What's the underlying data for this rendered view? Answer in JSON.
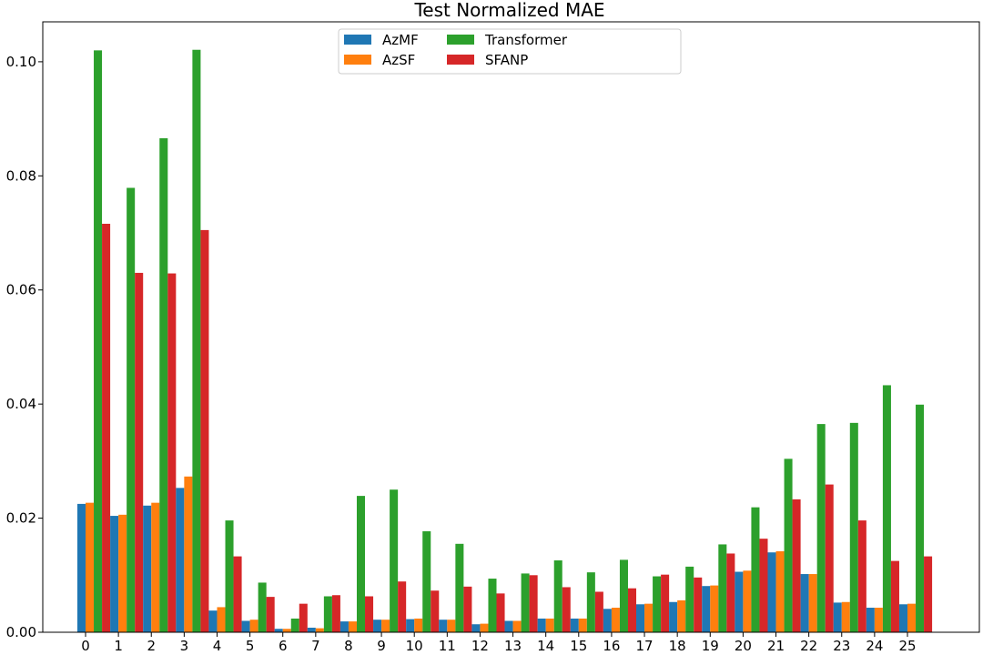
{
  "chart_data": {
    "type": "bar",
    "title": "Test Normalized MAE",
    "xlabel": "",
    "ylabel": "",
    "categories": [
      "0",
      "1",
      "2",
      "3",
      "4",
      "5",
      "6",
      "7",
      "8",
      "9",
      "10",
      "11",
      "12",
      "13",
      "14",
      "15",
      "16",
      "17",
      "18",
      "19",
      "20",
      "21",
      "22",
      "23",
      "24",
      "25"
    ],
    "ylim": [
      0,
      0.107
    ],
    "yticks": [
      0.0,
      0.02,
      0.04,
      0.06,
      0.08,
      0.1
    ],
    "ytick_labels": [
      "0.00",
      "0.02",
      "0.04",
      "0.06",
      "0.08",
      "0.10"
    ],
    "grid": false,
    "legend_position": "top-center",
    "legend_columns": 3,
    "series": [
      {
        "name": "AzMF",
        "color": "#1f77b4",
        "values": [
          0.0225,
          0.0204,
          0.0222,
          0.0253,
          0.0038,
          0.002,
          0.0006,
          0.0008,
          0.0019,
          0.0022,
          0.0023,
          0.0022,
          0.0014,
          0.002,
          0.0024,
          0.0024,
          0.0041,
          0.0049,
          0.0053,
          0.0081,
          0.0106,
          0.014,
          0.0102,
          0.0052,
          0.0043,
          0.0049
        ]
      },
      {
        "name": "AzSF",
        "color": "#ff7f0e",
        "values": [
          0.0227,
          0.0206,
          0.0227,
          0.0273,
          0.0044,
          0.0022,
          0.0006,
          0.0007,
          0.0019,
          0.0022,
          0.0024,
          0.0022,
          0.0015,
          0.002,
          0.0024,
          0.0024,
          0.0043,
          0.005,
          0.0056,
          0.0082,
          0.0108,
          0.0142,
          0.0102,
          0.0053,
          0.0043,
          0.005
        ]
      },
      {
        "name": "Transformer",
        "color": "#2ca02c",
        "values": [
          0.102,
          0.0779,
          0.0866,
          0.1021,
          0.0196,
          0.0087,
          0.0024,
          0.0063,
          0.0239,
          0.025,
          0.0177,
          0.0155,
          0.0094,
          0.0103,
          0.0126,
          0.0105,
          0.0127,
          0.0098,
          0.0115,
          0.0154,
          0.0219,
          0.0304,
          0.0365,
          0.0367,
          0.0433,
          0.0399
        ]
      },
      {
        "name": "SFANP",
        "color": "#d62728",
        "values": [
          0.0716,
          0.063,
          0.0629,
          0.0705,
          0.0133,
          0.0062,
          0.005,
          0.0065,
          0.0063,
          0.0089,
          0.0073,
          0.008,
          0.0068,
          0.01,
          0.0079,
          0.0071,
          0.0077,
          0.0101,
          0.0096,
          0.0138,
          0.0164,
          0.0233,
          0.0259,
          0.0196,
          0.0125,
          0.0133
        ]
      }
    ]
  }
}
